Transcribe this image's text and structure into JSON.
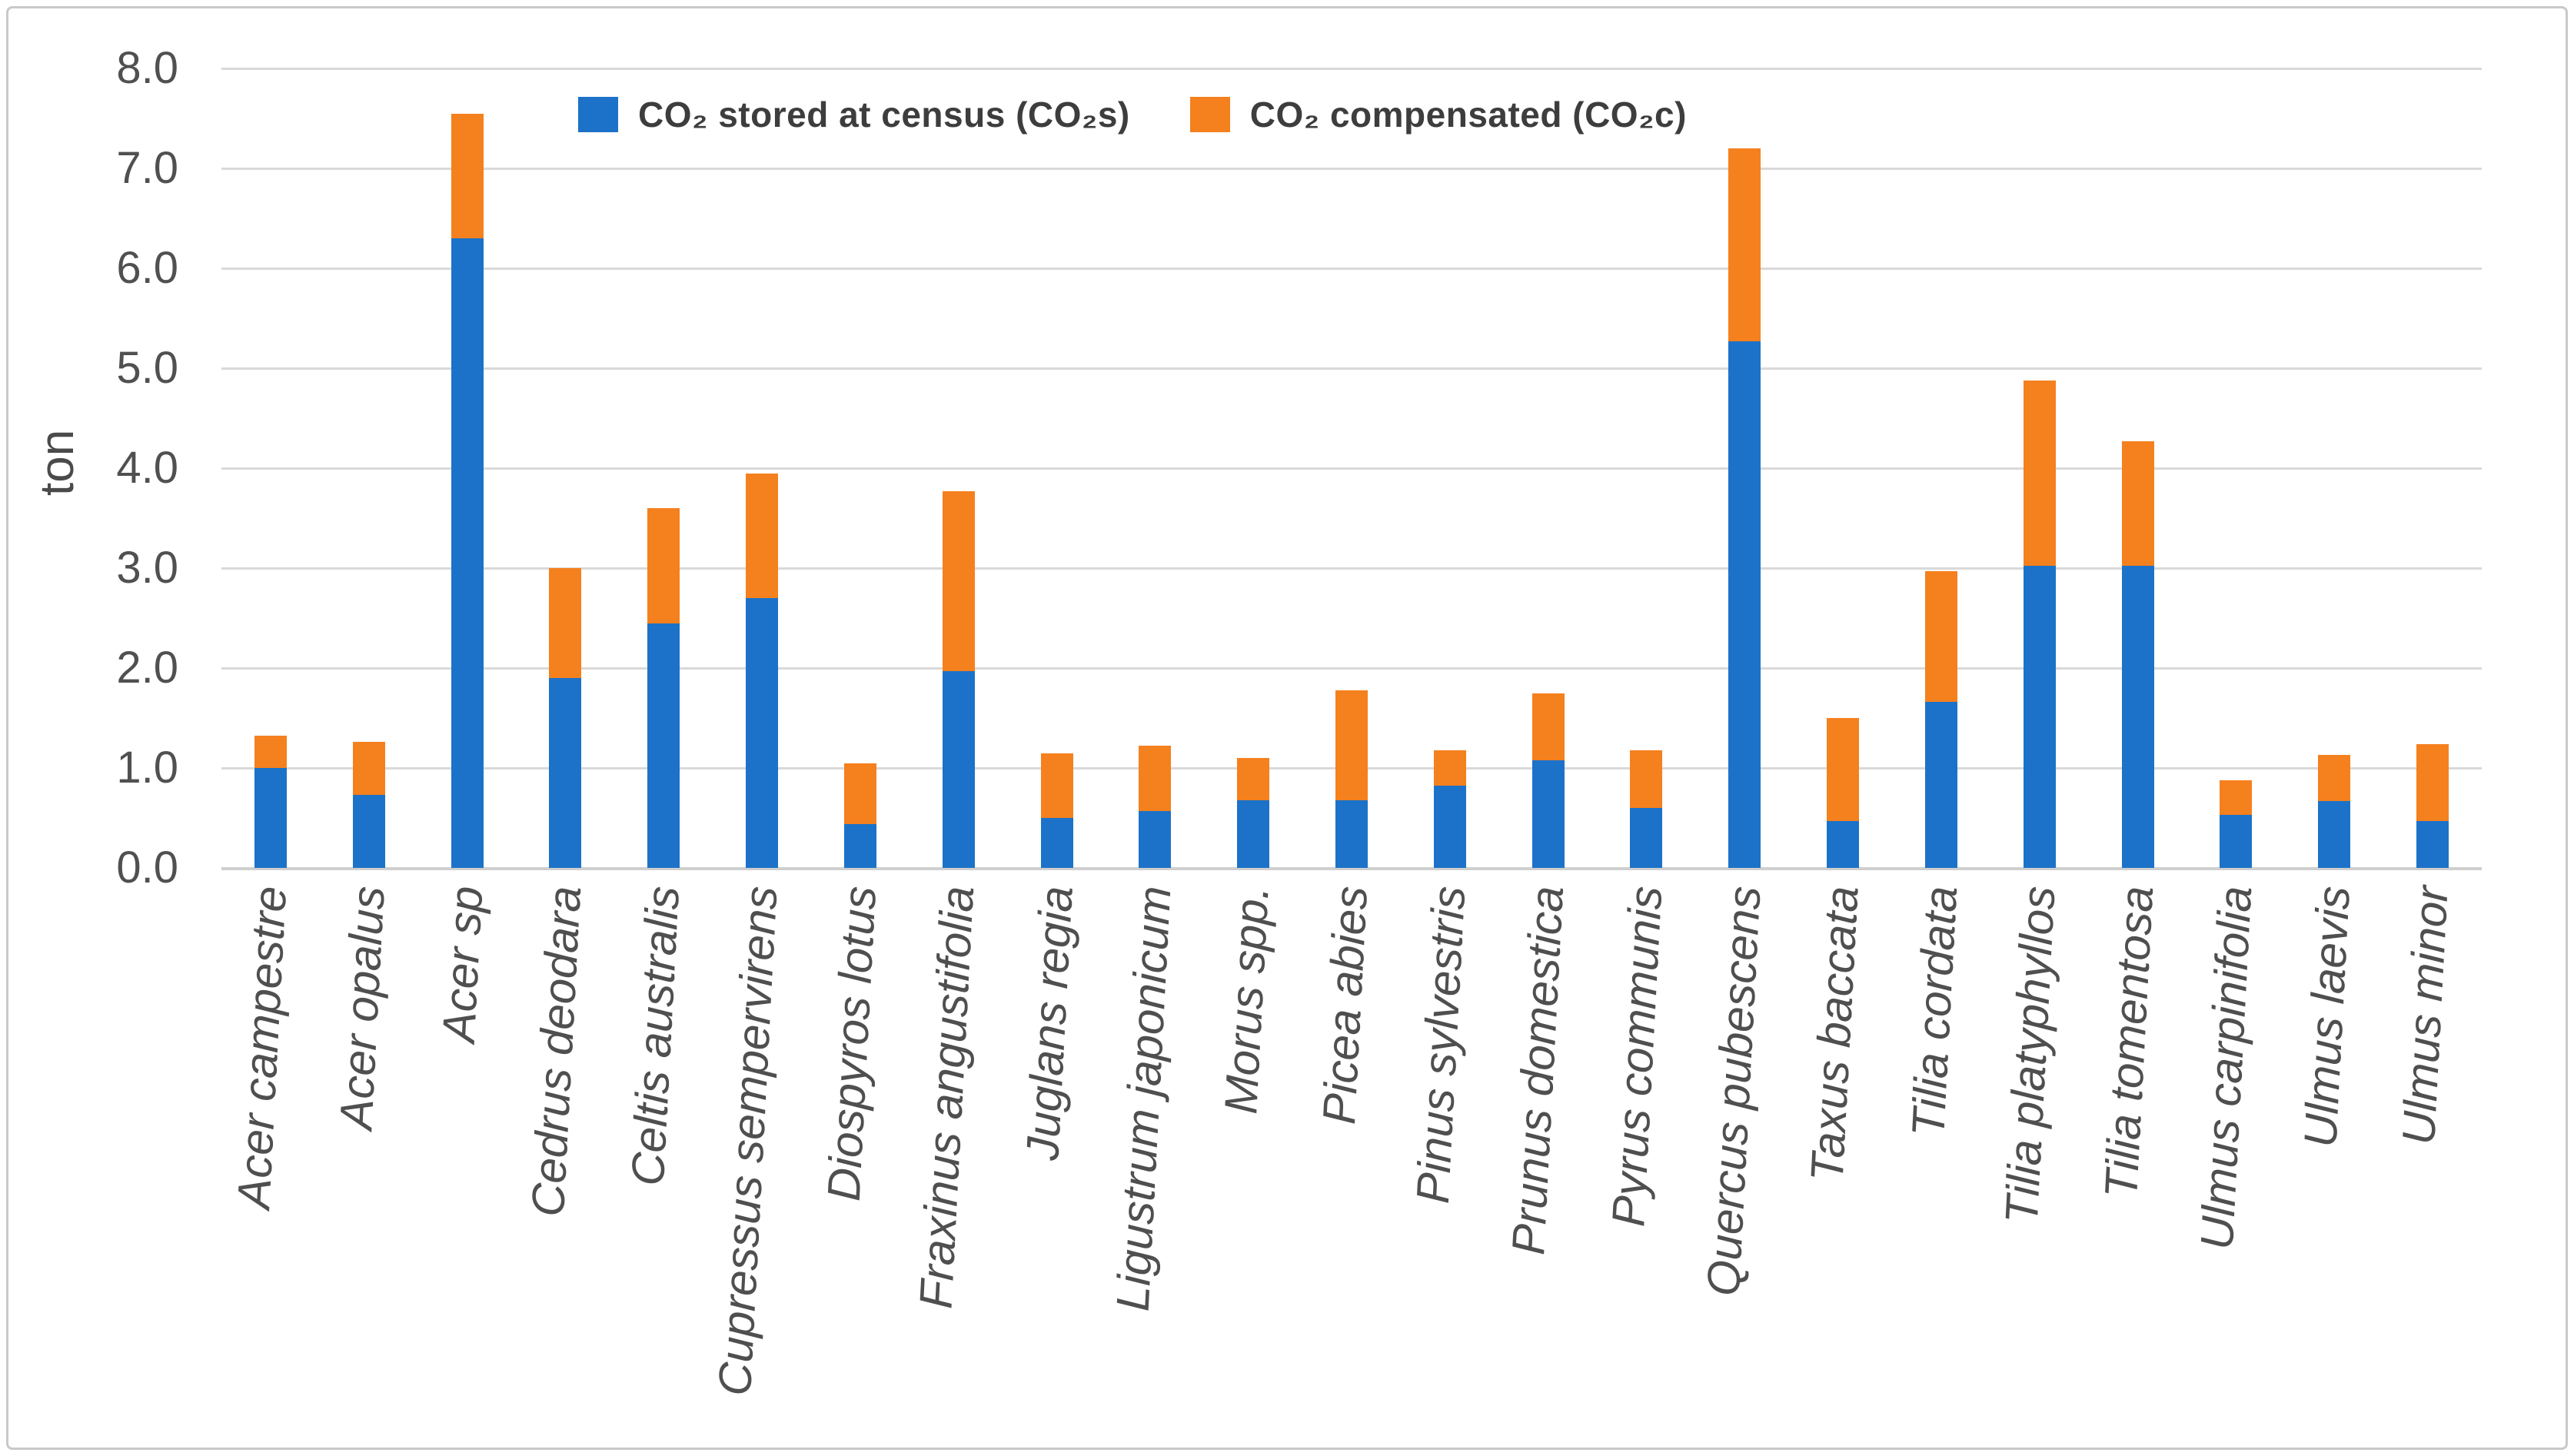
{
  "figure": {
    "background": "#FFFFFF",
    "border_color": "#C9C9C9"
  },
  "chart_data": {
    "type": "bar",
    "stacked": true,
    "title": "",
    "ylabel": "ton",
    "ylim": [
      0,
      8
    ],
    "ytick_interval": 1.0,
    "ytick_labels": [
      "0.0",
      "1.0",
      "2.0",
      "3.0",
      "4.0",
      "5.0",
      "6.0",
      "7.0",
      "8.0"
    ],
    "grid": "horizontal",
    "gridline_color": "#D9D9D9",
    "axis_text_color": "#505050",
    "legend_position": "top-inside-horizontal",
    "categories": [
      "Acer campestre",
      "Acer opalus",
      "Acer sp",
      "Cedrus deodara",
      "Celtis australis",
      "Cupressus sempervirens",
      "Diospyros lotus",
      "Fraxinus angustifolia",
      "Juglans regia",
      "Ligustrum japonicum",
      "Morus spp.",
      "Picea abies",
      "Pinus sylvestris",
      "Prunus domestica",
      "Pyrus communis",
      "Quercus pubescens",
      "Taxus baccata",
      "Tilia cordata",
      "Tilia platyphyllos",
      "Tilia tomentosa",
      "Ulmus carpinifolia",
      "Ulmus laevis",
      "Ulmus minor"
    ],
    "series": [
      {
        "name": "CO₂ stored at census (CO₂s)",
        "color": "#1C72C8",
        "values": [
          1.0,
          0.73,
          6.3,
          1.9,
          2.45,
          2.7,
          0.44,
          1.97,
          0.5,
          0.57,
          0.68,
          0.68,
          0.82,
          1.08,
          0.6,
          5.27,
          0.47,
          1.66,
          3.02,
          3.02,
          0.53,
          0.67,
          0.47
        ]
      },
      {
        "name": "CO₂ compensated (CO₂c)",
        "color": "#F5801E",
        "values": [
          0.32,
          0.53,
          1.25,
          1.1,
          1.15,
          1.25,
          0.61,
          1.8,
          0.65,
          0.65,
          0.42,
          1.1,
          0.36,
          0.67,
          0.58,
          1.93,
          1.03,
          1.31,
          1.86,
          1.25,
          0.35,
          0.46,
          0.77
        ]
      }
    ]
  }
}
